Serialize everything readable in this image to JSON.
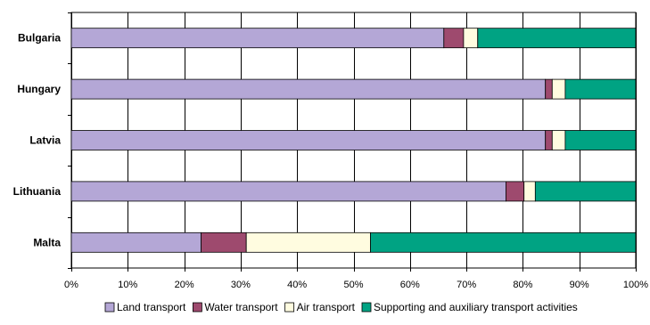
{
  "chart_data": {
    "type": "bar",
    "orientation": "horizontal",
    "stacked": true,
    "percent": true,
    "categories": [
      "Bulgaria",
      "Hungary",
      "Latvia",
      "Lithuania",
      "Malta"
    ],
    "series": [
      {
        "name": "Land transport",
        "color": "#B4A7D6",
        "values": [
          66,
          84,
          84,
          77,
          23
        ]
      },
      {
        "name": "Water transport",
        "color": "#9E4A6E",
        "values": [
          3.5,
          1.2,
          1.2,
          3.2,
          8
        ]
      },
      {
        "name": "Air transport",
        "color": "#FFFCE0",
        "values": [
          2.5,
          2.3,
          2.3,
          2,
          22
        ]
      },
      {
        "name": "Supporting and auxiliary transport activities",
        "color": "#00A383",
        "values": [
          28,
          12.5,
          12.5,
          17.8,
          47
        ]
      }
    ],
    "xlim": [
      0,
      100
    ],
    "xticks": [
      "0%",
      "10%",
      "20%",
      "30%",
      "40%",
      "50%",
      "60%",
      "70%",
      "80%",
      "90%",
      "100%"
    ],
    "grid": true,
    "legend_position": "bottom"
  }
}
